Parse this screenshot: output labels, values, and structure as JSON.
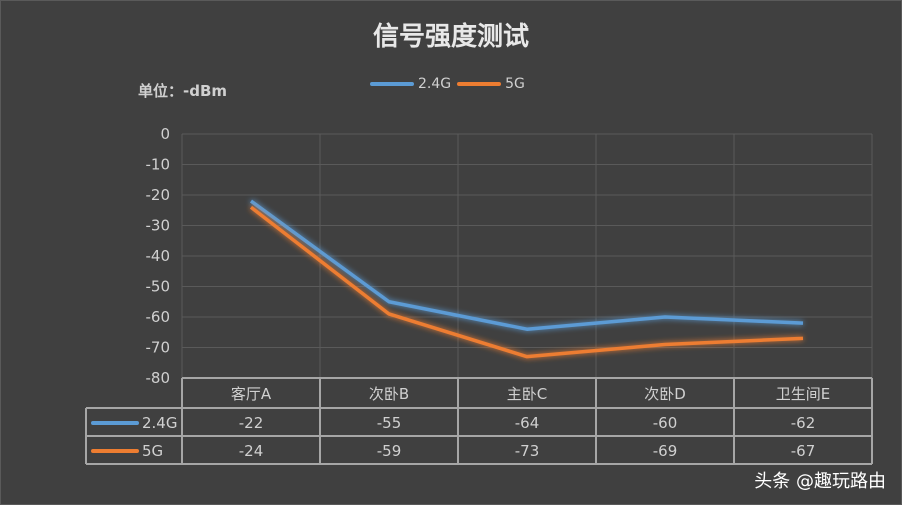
{
  "chart_data": {
    "type": "line",
    "title": "信号强度测试",
    "unit_label": "单位：-dBm",
    "categories": [
      "客厅A",
      "次卧B",
      "主卧C",
      "次卧D",
      "卫生间E"
    ],
    "series": [
      {
        "name": "2.4G",
        "values": [
          -22,
          -55,
          -64,
          -60,
          -62
        ],
        "color": "#5b9bd5"
      },
      {
        "name": "5G",
        "values": [
          -24,
          -59,
          -73,
          -69,
          -67
        ],
        "color": "#ed7d31"
      }
    ],
    "ylim": [
      -80,
      0
    ],
    "yticks": [
      0,
      -10,
      -20,
      -30,
      -40,
      -50,
      -60,
      -70,
      -80
    ],
    "grid": true,
    "legend": "top",
    "data_table": true
  },
  "watermark": "头条 @趣玩路由"
}
